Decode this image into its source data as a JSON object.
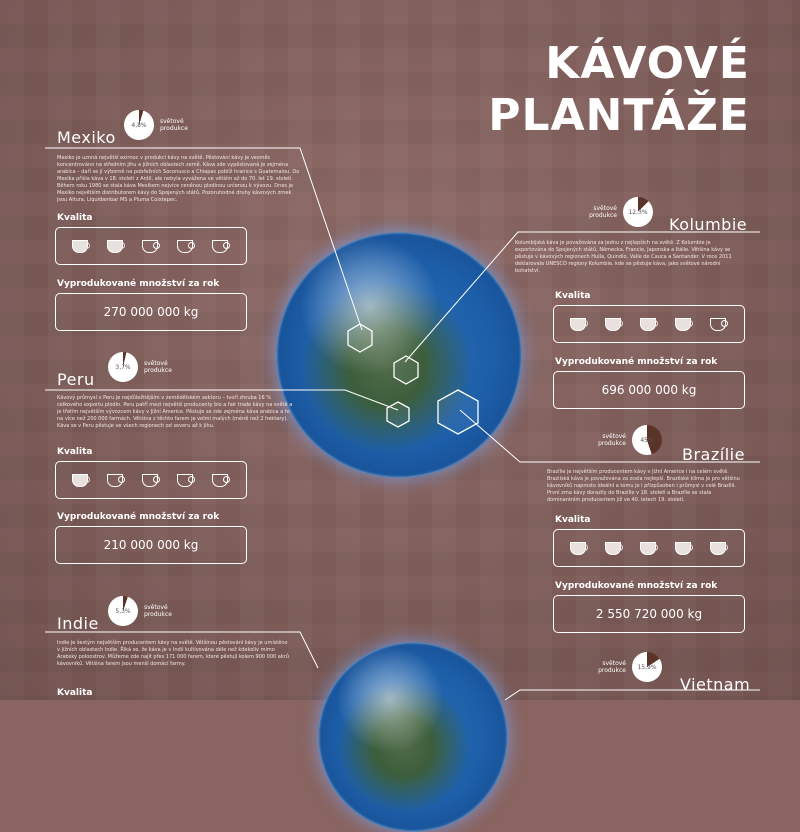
{
  "title": {
    "line1": "KÁVOVÉ",
    "line2": "PLANTÁŽE"
  },
  "labels": {
    "quality": "Kvalita",
    "amount_heading": "Vyprodukované množství za rok",
    "share": "světové produkce"
  },
  "countries": {
    "mexiko": {
      "name": "Mexiko",
      "share": "4,8%",
      "amount": "270 000 000 kg",
      "quality": 2,
      "desc": "Mexiko je uznná největší exirnoc v produkci kávy na světě. Pěstování kávy je vesměs koncentrováno na středním jihu a jižních oblastech země. Káva zde vypěstovaná je zejména arabica – daří se jí výborně na pobřežních Soconusco a Chiapas poblíž hranice s Guatemalou. Do Mexika přišla káva v 18. století z Antil, ale nebyla vyvážena ve větším až do 70. let 19. století. Během roku 1980 se stala káva Mexikem nejvíce ceněnou plodinou určenou k vývozu. Dnes je Mexiko největším distributorem kávy do Spojených států. Pozoruhodné druhy kávových zrnek jsou Altura, Liquidambar MS a Pluma Coixtepec."
    },
    "kolumbie": {
      "name": "Kolumbie",
      "share": "12,3%",
      "amount": "696 000 000 kg",
      "quality": 4,
      "desc": "Kolumbijská káva je považována za jednu z nejlepších na světě. Z Kolumbie je exportována do Spojených států, Německa, Francie, Japonska a Itálie. Většina kávy se pěstuje v kávových regionech Huila, Quindío, Valle de Cauca a Santander. V roce 2011 deklarovala UNESCO regiony Kolumbie, kde se pěstuje káva, jako světové národní bohatství."
    },
    "peru": {
      "name": "Peru",
      "share": "3,7%",
      "amount": "210 000 000 kg",
      "quality": 1,
      "desc": "Kávový průmysl v Peru je nejdůležitějším v zemědělském sektoru – tvoří zhruba 16 % celkového exportu plodin. Peru patří mezi největší producenty bio a fair trade kávy na světě a je třetím největším vývozcem kávy v Jižní Americe. Pěstuje se zde zejména káva arabica a to na více než 200 000 farmách. Většina z těchto farem je velmi malých (méně než 2 hektary). Káva se v Peru pěstuje ve všech regionech od severu až k jihu."
    },
    "brazilie": {
      "name": "Brazílie",
      "share": "45%",
      "amount": "2 550 720 000 kg",
      "quality": 5,
      "desc": "Brazílie je největším producentem kávy v Jižní Americe i na celém světě. Brazilská káva je považována za zcela nejlepší. Brazilské klima je pro většinu kávovníků naprosto ideální a tomu je i přizpůsoben i průmysl v celé Brazílii. První zrna kávy dorazily do Brazílie v 18. století a Brazílie se stala dominantním producentem již ve 40. letech 19. století."
    },
    "indie": {
      "name": "Indie",
      "share": "5,3%",
      "desc": "Indie je šestým největším producentem kávy na světě. Většinou pěstování kávy je umístěno v jižních oblastech Indie. Říká se, že káva je v Indii kultivována déle než kdekoliv mimo Arabský poloostrov. Můžeme zde najít přes 171 000 farem, které pěstují kolem 900 000 akrů kávovníků. Většina farem jsou menší domácí farmy."
    },
    "vietnam": {
      "name": "Vietnam",
      "share": "15,9%"
    }
  },
  "colors": {
    "background": "#8a6460",
    "pie_fill": "#5a3426",
    "ocean": "#1d5ea8"
  }
}
